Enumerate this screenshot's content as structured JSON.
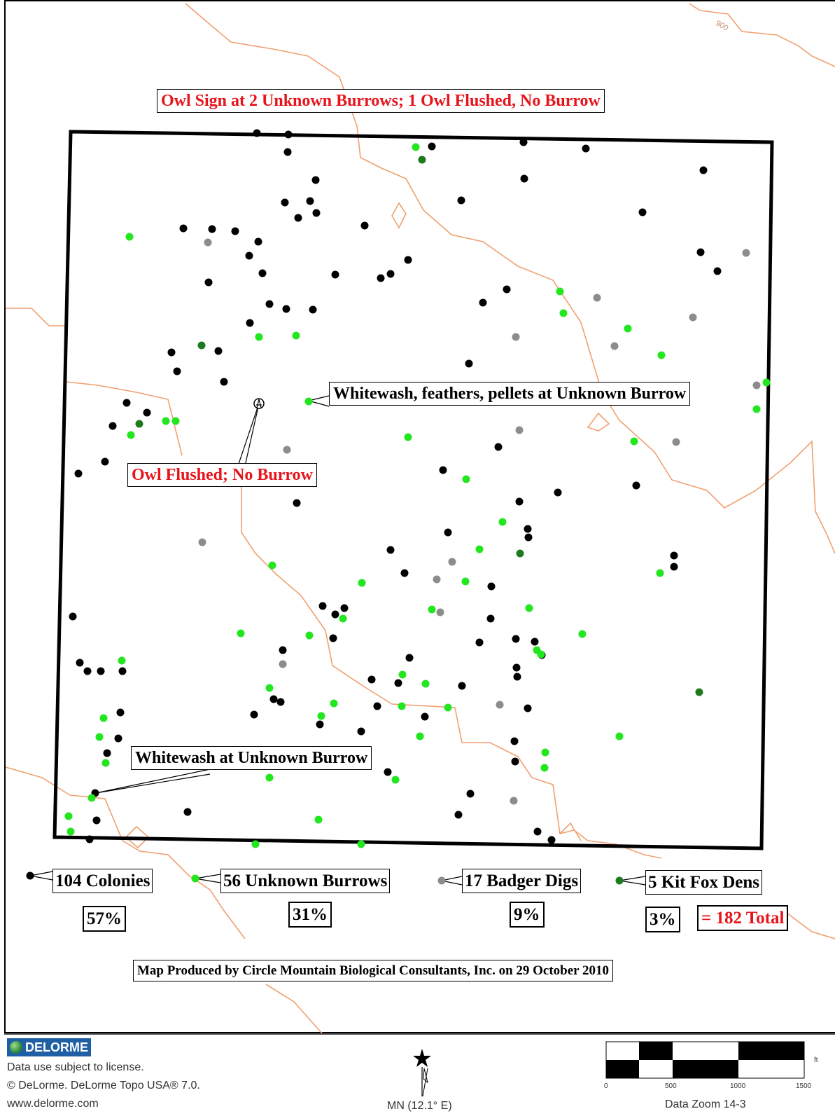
{
  "map": {
    "contour_label": "900",
    "colors": {
      "colony": "#000000",
      "unknown_burrow": "#22e61e",
      "badger_dig": "#8c8c8c",
      "kit_fox_den": "#1e7a1e",
      "contour": "#f0a070",
      "red_text": "#e8141c"
    }
  },
  "callouts": {
    "owl_sign": "Owl Sign at 2 Unknown Burrows; 1 Owl Flushed, No Burrow",
    "whitewash_feathers": "Whitewash, feathers, pellets at Unknown Burrow",
    "owl_flushed": "Owl Flushed; No Burrow",
    "whitewash": "Whitewash at Unknown Burrow"
  },
  "legend": {
    "colonies": {
      "label": "104 Colonies",
      "pct": "57%"
    },
    "unknown_burrows": {
      "label": "56 Unknown Burrows",
      "pct": "31%"
    },
    "badger_digs": {
      "label": "17 Badger Digs",
      "pct": "9%"
    },
    "kit_fox_dens": {
      "label": "5 Kit Fox Dens",
      "pct": "3%"
    },
    "total": "= 182 Total"
  },
  "credit": "Map Produced by Circle Mountain Biological Consultants, Inc. on 29 October 2010",
  "footer": {
    "logo": "DELORME",
    "line1": "Data use subject to license.",
    "line2": "© DeLorme. DeLorme Topo USA® 7.0.",
    "line3": "www.delorme.com",
    "north": "MN (12.1° E)",
    "zoom": "Data Zoom 14-3",
    "scale_unit": "ft",
    "scale_ticks": [
      "0",
      "500",
      "1000",
      "1500"
    ]
  }
}
